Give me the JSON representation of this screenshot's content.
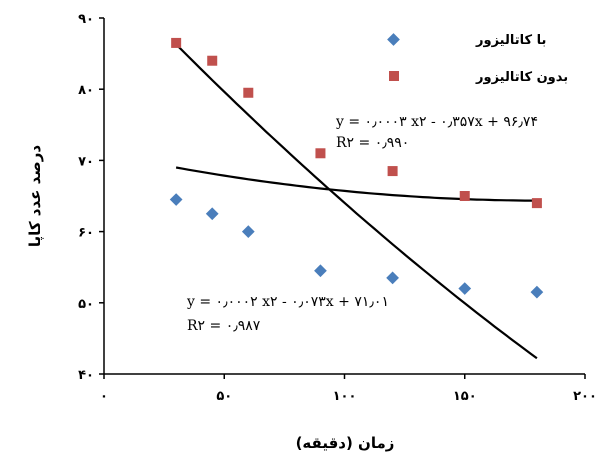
{
  "chart_data": {
    "type": "scatter",
    "xlabel": "زمان (دقیقه)",
    "ylabel": "درصد عدد کاپا",
    "xlim": [
      0,
      200
    ],
    "ylim": [
      40,
      90
    ],
    "x_ticks": [
      0,
      50,
      100,
      150,
      200
    ],
    "y_ticks": [
      40,
      50,
      60,
      70,
      80,
      90
    ],
    "x_tick_labels": [
      "۰",
      "۵۰",
      "۱۰۰",
      "۱۵۰",
      "۲۰۰"
    ],
    "y_tick_labels": [
      "۴۰",
      "۵۰",
      "۶۰",
      "۷۰",
      "۸۰",
      "۹۰"
    ],
    "legend_position": "top-right",
    "grid": false,
    "series": [
      {
        "name": "با کاتالیزور",
        "marker": "diamond",
        "color": "#4a7ebb",
        "x": [
          30,
          45,
          60,
          90,
          120,
          150,
          180
        ],
        "y": [
          64.5,
          62.5,
          60,
          54.5,
          53.5,
          52,
          51.5
        ],
        "trendline": {
          "coeffs": [
            0.0002,
            -0.073,
            71.01
          ],
          "equation": "y = ۰٫۰۰۰۲ x۲ - ۰٫۰۷۳x + ۷۱٫۰۱",
          "r2": "R۲ = ۰٫۹۸۷"
        }
      },
      {
        "name": "بدون کاتالیزور",
        "marker": "square",
        "color": "#c0504d",
        "x": [
          30,
          45,
          60,
          90,
          120,
          150,
          180
        ],
        "y": [
          86.5,
          84,
          79.5,
          71,
          68.5,
          65,
          64
        ],
        "trendline": {
          "coeffs": [
            0.0003,
            -0.357,
            96.74
          ],
          "equation": "y = ۰٫۰۰۰۳ x۲ - ۰٫۳۵۷x + ۹۶٫۷۴",
          "r2": "R۲ = ۰٫۹۹۰"
        }
      }
    ]
  }
}
